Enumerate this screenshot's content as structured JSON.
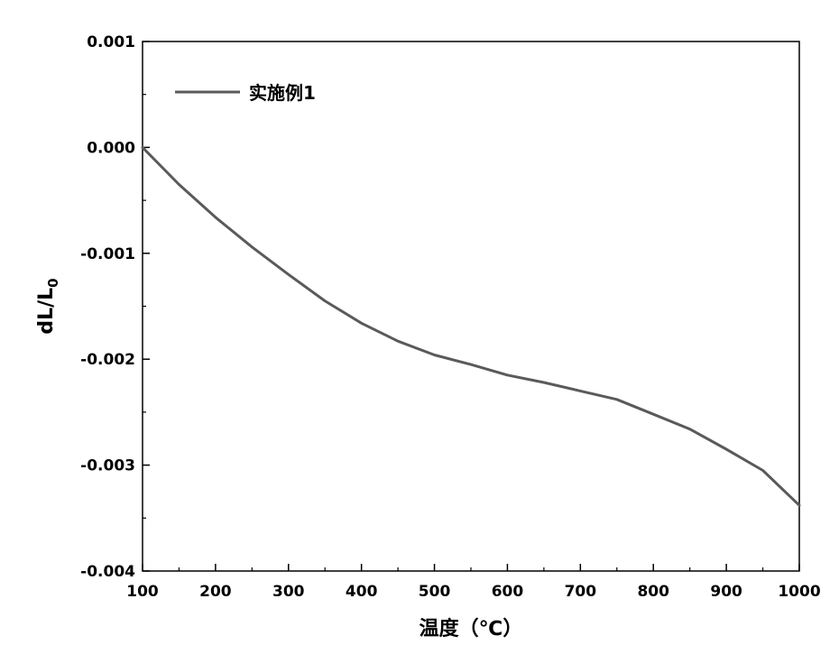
{
  "chart_data": {
    "type": "line",
    "title": "",
    "xlabel": "温度（℃）",
    "ylabel_main": "dL/L",
    "ylabel_sub": "0",
    "xlim": [
      100,
      1000
    ],
    "ylim": [
      -0.004,
      0.001
    ],
    "x_ticks": [
      100,
      200,
      300,
      400,
      500,
      600,
      700,
      800,
      900,
      1000
    ],
    "x_tick_labels": [
      "100",
      "200",
      "300",
      "400",
      "500",
      "600",
      "700",
      "800",
      "900",
      "1000"
    ],
    "y_ticks": [
      0.001,
      0.0,
      -0.001,
      -0.002,
      -0.003,
      -0.004
    ],
    "y_tick_labels": [
      "0.001",
      "0.000",
      "-0.001",
      "-0.002",
      "-0.003",
      "-0.004"
    ],
    "grid": false,
    "legend_position": "top-left",
    "series": [
      {
        "name": "实施例1",
        "color": "#5a5a5a",
        "x": [
          100,
          150,
          200,
          250,
          300,
          350,
          400,
          450,
          500,
          550,
          600,
          650,
          700,
          750,
          800,
          850,
          900,
          950,
          1000
        ],
        "values": [
          0.0,
          -0.00035,
          -0.00066,
          -0.00094,
          -0.0012,
          -0.00145,
          -0.00166,
          -0.00183,
          -0.00196,
          -0.00205,
          -0.00215,
          -0.00222,
          -0.0023,
          -0.00238,
          -0.00252,
          -0.00266,
          -0.00285,
          -0.00305,
          -0.00338
        ]
      }
    ]
  }
}
